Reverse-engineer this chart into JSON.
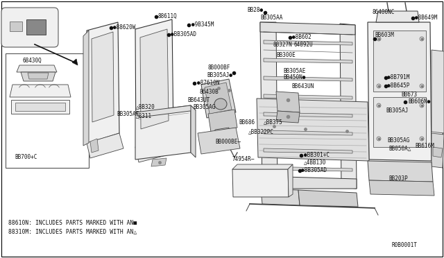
{
  "bg_color": "#ffffff",
  "line_color": "#333333",
  "text_color": "#111111",
  "footnote1": "88610N: INCLUDES PARTS MARKED WITH AN■",
  "footnote2": "88310M: INCLUDES PARTS MARKED WITH AN△",
  "diagram_id": "R0B0001T",
  "font_size": 5.5
}
